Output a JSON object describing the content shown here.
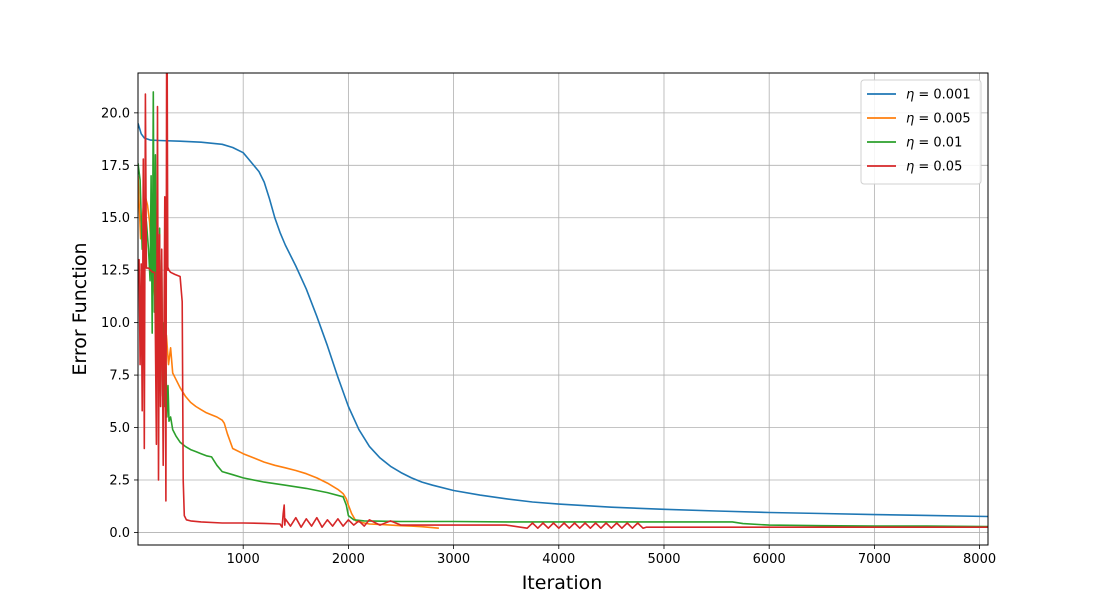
{
  "chart_data": {
    "type": "line",
    "title": "",
    "xlabel": "Iteration",
    "ylabel": "Error Function",
    "xlim": [
      0,
      8080
    ],
    "ylim": [
      -0.6,
      21.9
    ],
    "xticks": [
      1000,
      2000,
      3000,
      4000,
      5000,
      6000,
      7000,
      8000
    ],
    "xtick_labels": [
      "1000",
      "2000",
      "3000",
      "4000",
      "5000",
      "6000",
      "7000",
      "8000"
    ],
    "yticks": [
      0.0,
      2.5,
      5.0,
      7.5,
      10.0,
      12.5,
      15.0,
      17.5,
      20.0
    ],
    "ytick_labels": [
      "0.0",
      "2.5",
      "5.0",
      "7.5",
      "10.0",
      "12.5",
      "15.0",
      "17.5",
      "20.0"
    ],
    "grid": true,
    "legend_position": "top-right",
    "series": [
      {
        "name": "η = 0.001",
        "legend_prefix": "η",
        "legend_suffix": " = 0.001",
        "color": "#1f77b4",
        "x": [
          0,
          30,
          60,
          120,
          200,
          400,
          600,
          800,
          900,
          1000,
          1050,
          1100,
          1150,
          1200,
          1250,
          1300,
          1350,
          1400,
          1500,
          1600,
          1700,
          1800,
          1900,
          2000,
          2100,
          2200,
          2300,
          2400,
          2500,
          2600,
          2700,
          2800,
          3000,
          3250,
          3500,
          3750,
          4000,
          4500,
          5000,
          5500,
          6000,
          6500,
          7000,
          7500,
          8080
        ],
        "y": [
          19.5,
          19.0,
          18.8,
          18.7,
          18.68,
          18.65,
          18.6,
          18.5,
          18.35,
          18.1,
          17.8,
          17.5,
          17.2,
          16.7,
          15.9,
          15.0,
          14.3,
          13.7,
          12.7,
          11.6,
          10.3,
          8.9,
          7.4,
          6.0,
          4.9,
          4.1,
          3.55,
          3.15,
          2.85,
          2.6,
          2.4,
          2.25,
          2.0,
          1.78,
          1.6,
          1.45,
          1.35,
          1.2,
          1.1,
          1.02,
          0.95,
          0.9,
          0.85,
          0.81,
          0.76
        ]
      },
      {
        "name": "η = 0.005",
        "legend_prefix": "η",
        "legend_suffix": " = 0.005",
        "color": "#ff7f0e",
        "x": [
          0,
          25,
          50,
          70,
          90,
          110,
          130,
          150,
          170,
          190,
          210,
          230,
          250,
          270,
          290,
          310,
          330,
          360,
          400,
          450,
          500,
          550,
          600,
          650,
          700,
          750,
          800,
          820,
          850,
          900,
          1000,
          1100,
          1200,
          1300,
          1400,
          1500,
          1600,
          1700,
          1800,
          1900,
          1950,
          1980,
          2000,
          2030,
          2070,
          2100,
          2150,
          2200,
          2300,
          2400,
          2500,
          2600,
          2700,
          2860
        ],
        "y": [
          17.0,
          14.0,
          15.5,
          16.0,
          15.6,
          14.8,
          13.2,
          11.5,
          10.5,
          9.8,
          11.0,
          9.0,
          8.2,
          9.4,
          8.0,
          8.8,
          7.6,
          7.3,
          6.9,
          6.5,
          6.2,
          6.0,
          5.85,
          5.7,
          5.6,
          5.5,
          5.35,
          5.2,
          4.7,
          4.0,
          3.75,
          3.55,
          3.35,
          3.2,
          3.08,
          2.95,
          2.8,
          2.6,
          2.35,
          2.05,
          1.85,
          1.6,
          1.3,
          0.9,
          0.55,
          0.5,
          0.45,
          0.4,
          0.38,
          0.35,
          0.32,
          0.3,
          0.27,
          0.2
        ]
      },
      {
        "name": "η = 0.01",
        "legend_prefix": "η",
        "legend_suffix": " = 0.01",
        "color": "#2ca02c",
        "x": [
          0,
          20,
          40,
          60,
          80,
          100,
          115,
          125,
          135,
          145,
          155,
          165,
          175,
          185,
          195,
          205,
          215,
          225,
          235,
          245,
          255,
          265,
          275,
          285,
          295,
          310,
          330,
          360,
          400,
          450,
          500,
          550,
          600,
          650,
          700,
          750,
          800,
          900,
          1000,
          1200,
          1400,
          1600,
          1800,
          1950,
          1980,
          2000,
          2050,
          2150,
          2500,
          3000,
          3500,
          4000,
          4500,
          5000,
          5500,
          5650,
          5750,
          6000,
          6500,
          7000,
          7500,
          8080
        ],
        "y": [
          17.6,
          16.8,
          13.5,
          15.5,
          14.8,
          13.5,
          12.0,
          17.0,
          9.5,
          21.0,
          10.5,
          18.0,
          8.5,
          16.5,
          7.5,
          14.5,
          7.0,
          13.0,
          6.5,
          10.0,
          6.0,
          8.0,
          5.5,
          7.0,
          5.3,
          5.5,
          4.9,
          4.6,
          4.3,
          4.1,
          3.95,
          3.85,
          3.75,
          3.65,
          3.6,
          3.2,
          2.9,
          2.75,
          2.6,
          2.4,
          2.25,
          2.1,
          1.9,
          1.7,
          1.3,
          0.8,
          0.6,
          0.55,
          0.52,
          0.52,
          0.5,
          0.5,
          0.5,
          0.5,
          0.5,
          0.5,
          0.42,
          0.35,
          0.32,
          0.3,
          0.3,
          0.28
        ]
      },
      {
        "name": "η = 0.05",
        "legend_prefix": "η",
        "legend_suffix": " = 0.05",
        "color": "#d62728",
        "x": [
          0,
          10,
          20,
          30,
          40,
          50,
          60,
          70,
          80,
          90,
          100,
          120,
          140,
          160,
          175,
          185,
          195,
          205,
          215,
          225,
          240,
          255,
          265,
          272,
          278,
          283,
          288,
          292,
          296,
          300,
          310,
          350,
          400,
          420,
          430,
          440,
          460,
          500,
          600,
          800,
          1000,
          1200,
          1350,
          1370,
          1380,
          1390,
          1395,
          1400,
          1450,
          1500,
          1550,
          1600,
          1650,
          1700,
          1750,
          1800,
          1850,
          1900,
          1950,
          2000,
          2050,
          2100,
          2150,
          2200,
          2300,
          2400,
          2500,
          3000,
          3500,
          3700,
          3750,
          3800,
          3850,
          3900,
          3950,
          4000,
          4050,
          4100,
          4150,
          4200,
          4250,
          4300,
          4350,
          4400,
          4450,
          4500,
          4550,
          4600,
          4650,
          4700,
          4750,
          4800,
          4830,
          5000,
          6000,
          7000,
          8080
        ],
        "y": [
          12.5,
          13.0,
          8.0,
          12.8,
          5.8,
          17.8,
          4.0,
          20.9,
          12.6,
          12.6,
          12.6,
          12.5,
          12.4,
          12.4,
          4.2,
          20.3,
          2.5,
          14.2,
          6.0,
          13.5,
          3.2,
          16.0,
          1.5,
          22.0,
          22.0,
          12.5,
          12.6,
          12.5,
          12.5,
          12.45,
          12.4,
          12.3,
          12.2,
          11.0,
          2.5,
          0.8,
          0.6,
          0.55,
          0.5,
          0.45,
          0.45,
          0.43,
          0.4,
          0.25,
          0.9,
          1.3,
          0.35,
          0.65,
          0.3,
          0.7,
          0.25,
          0.65,
          0.3,
          0.7,
          0.25,
          0.6,
          0.3,
          0.65,
          0.3,
          0.6,
          0.35,
          0.55,
          0.3,
          0.6,
          0.35,
          0.55,
          0.35,
          0.35,
          0.35,
          0.2,
          0.45,
          0.2,
          0.45,
          0.2,
          0.45,
          0.2,
          0.45,
          0.2,
          0.45,
          0.2,
          0.45,
          0.2,
          0.45,
          0.2,
          0.45,
          0.2,
          0.45,
          0.2,
          0.45,
          0.2,
          0.45,
          0.2,
          0.25,
          0.25,
          0.25,
          0.25,
          0.25
        ]
      }
    ]
  }
}
